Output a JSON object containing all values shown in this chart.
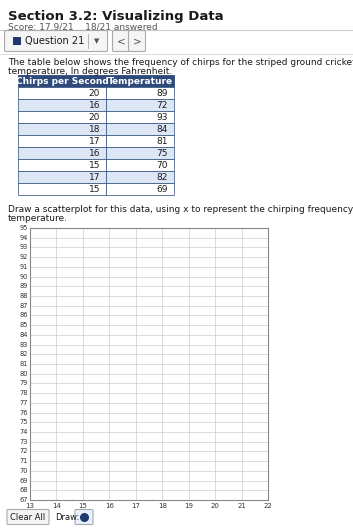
{
  "title": "Section 3.2: Visualizing Data",
  "score_line": "Score: 17.9/21    18/21 answered",
  "question_label": "Question 21",
  "desc_line1": "The table below shows the frequency of chirps for the striped ground cricket compared to the ambient",
  "desc_line2": "temperature, In degrees Fahrenheit.",
  "table_headers": [
    "Chirps per Second",
    "Temperature"
  ],
  "table_data": [
    [
      20,
      89
    ],
    [
      16,
      72
    ],
    [
      20,
      93
    ],
    [
      18,
      84
    ],
    [
      17,
      81
    ],
    [
      16,
      75
    ],
    [
      15,
      70
    ],
    [
      17,
      82
    ],
    [
      15,
      69
    ]
  ],
  "instr_line1": "Draw a scatterplot for this data, using x to represent the chirping frequency and y to represent",
  "instr_line2": "temperature.",
  "x_ticks": [
    13,
    14,
    15,
    16,
    17,
    18,
    19,
    20,
    21,
    22
  ],
  "y_min": 67,
  "y_max": 95,
  "bg_color": "#ffffff",
  "grid_color": "#c8cfd8",
  "table_header_bg": "#2e4a7a",
  "table_header_fg": "#ffffff",
  "table_row_bg1": "#ffffff",
  "table_row_bg2": "#dce6f5",
  "table_border_color": "#2e4a7a",
  "nav_color": "#1e3a6e",
  "separator_color": "#cccccc",
  "text_color": "#1a1a1a",
  "score_color": "#555555"
}
